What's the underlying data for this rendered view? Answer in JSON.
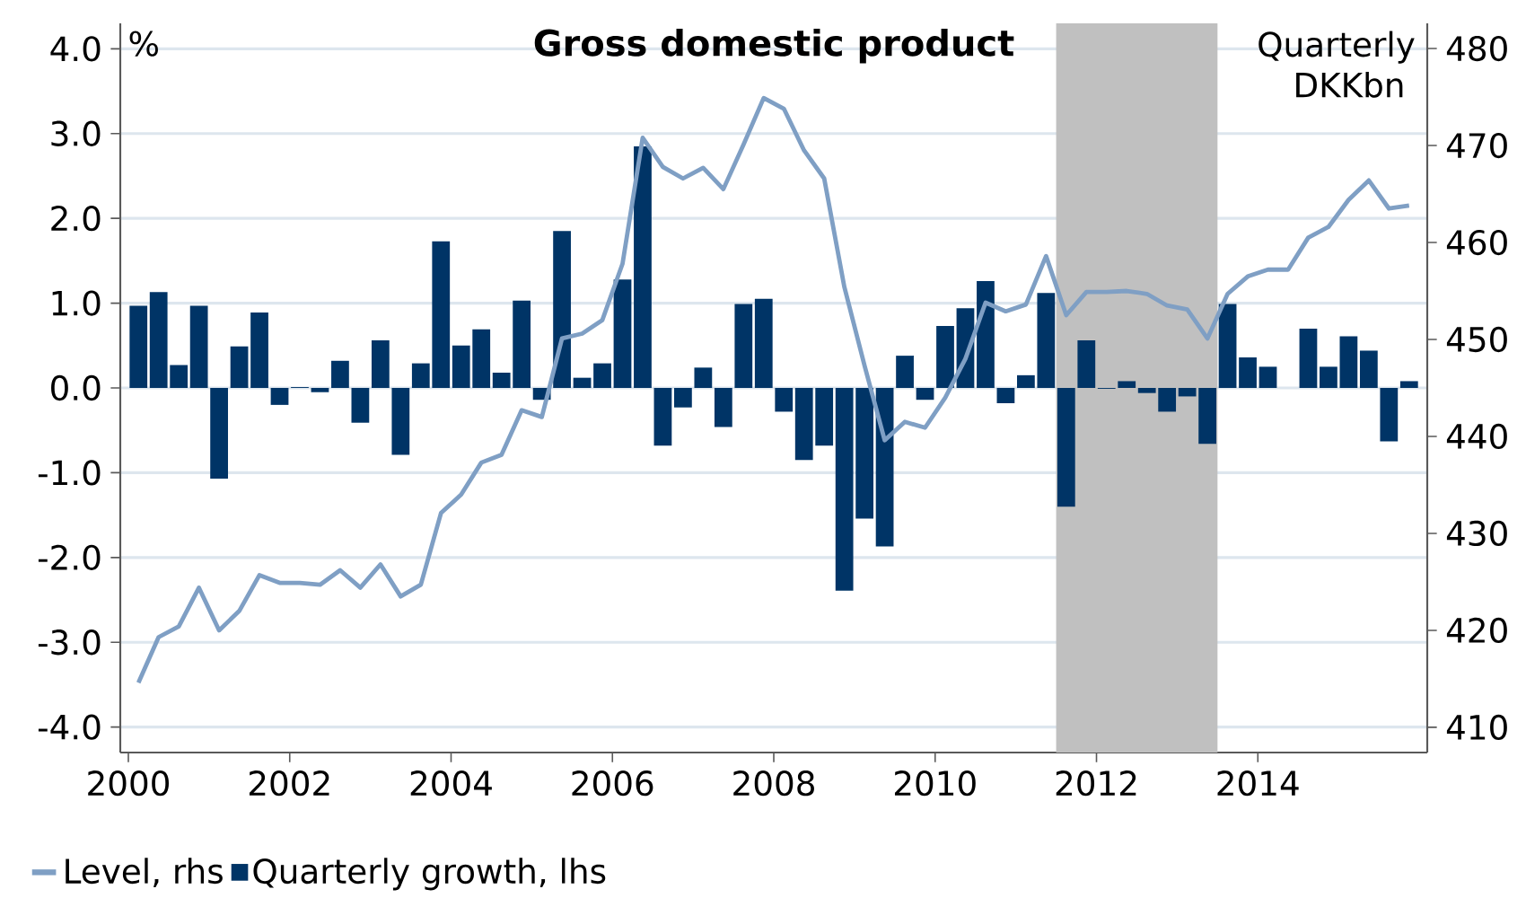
{
  "chart_data": {
    "type": "bar",
    "title": "Gross domestic product",
    "ylabel": "%",
    "y2label": "Quarterly DKKbn",
    "x": [
      2000.125,
      2000.375,
      2000.625,
      2000.875,
      2001.125,
      2001.375,
      2001.625,
      2001.875,
      2002.125,
      2002.375,
      2002.625,
      2002.875,
      2003.125,
      2003.375,
      2003.625,
      2003.875,
      2004.125,
      2004.375,
      2004.625,
      2004.875,
      2005.125,
      2005.375,
      2005.625,
      2005.875,
      2006.125,
      2006.375,
      2006.625,
      2006.875,
      2007.125,
      2007.375,
      2007.625,
      2007.875,
      2008.125,
      2008.375,
      2008.625,
      2008.875,
      2009.125,
      2009.375,
      2009.625,
      2009.875,
      2010.125,
      2010.375,
      2010.625,
      2010.875,
      2011.125,
      2011.375,
      2011.625,
      2011.875,
      2012.125,
      2012.375,
      2012.625,
      2012.875,
      2013.125,
      2013.375,
      2013.625,
      2013.875,
      2014.125,
      2014.375,
      2014.625,
      2014.875,
      2015.125,
      2015.375,
      2015.625,
      2015.875
    ],
    "series": [
      {
        "name": "Level, rhs",
        "type": "line",
        "axis": "y2",
        "color": "#7f9fc4",
        "values": [
          414.6,
          419.3,
          420.4,
          424.4,
          420.0,
          422.0,
          425.7,
          424.9,
          424.9,
          424.7,
          426.2,
          424.4,
          426.8,
          423.5,
          424.7,
          432.1,
          434.0,
          437.3,
          438.1,
          442.7,
          442.0,
          450.1,
          450.6,
          452.0,
          457.8,
          470.8,
          467.8,
          466.6,
          467.7,
          465.5,
          470.1,
          474.9,
          473.8,
          469.5,
          466.6,
          455.4,
          447.3,
          439.6,
          441.5,
          440.9,
          444.0,
          448.0,
          453.8,
          452.9,
          453.6,
          458.6,
          452.5,
          454.9,
          454.9,
          455.0,
          454.7,
          453.5,
          453.1,
          450.1,
          454.7,
          456.5,
          457.2,
          457.2,
          460.5,
          461.6,
          464.4,
          466.4,
          463.5,
          463.8
        ]
      },
      {
        "name": "Quarterly growth, lhs",
        "color": "#003466",
        "values": [
          0.97,
          1.13,
          0.27,
          0.97,
          -1.07,
          0.49,
          0.89,
          -0.2,
          0.01,
          -0.05,
          0.32,
          -0.41,
          0.56,
          -0.79,
          0.29,
          1.73,
          0.5,
          0.69,
          0.18,
          1.03,
          -0.14,
          1.85,
          0.12,
          0.29,
          1.28,
          2.85,
          -0.68,
          -0.23,
          0.24,
          -0.46,
          0.99,
          1.05,
          -0.28,
          -0.85,
          -0.68,
          -2.39,
          -1.54,
          -1.87,
          0.38,
          -0.14,
          0.73,
          0.94,
          1.26,
          -0.18,
          0.15,
          1.12,
          -1.4,
          0.56,
          -0.01,
          0.08,
          -0.06,
          -0.28,
          -0.1,
          -0.66,
          0.99,
          0.36,
          0.25,
          0.0,
          0.7,
          0.25,
          0.61,
          0.44,
          -0.63,
          0.08
        ]
      }
    ],
    "xlim": [
      1999.9,
      2016.1
    ],
    "xticks": [
      2000,
      2002,
      2004,
      2006,
      2008,
      2010,
      2012,
      2014
    ],
    "ylim": [
      -4.3,
      4.3
    ],
    "yticks": [
      {
        "value": -4,
        "label": "-4.0"
      },
      {
        "value": -3,
        "label": "-3.0"
      },
      {
        "value": -2,
        "label": "-2.0"
      },
      {
        "value": -1,
        "label": "-1.0"
      },
      {
        "value": 0,
        "label": "0.0"
      },
      {
        "value": 1,
        "label": "1.0"
      },
      {
        "value": 2,
        "label": "2.0"
      },
      {
        "value": 3,
        "label": "3.0"
      },
      {
        "value": 4,
        "label": "4.0"
      }
    ],
    "y2lim": [
      407.4,
      482.6
    ],
    "y2ticks": [
      410,
      420,
      430,
      440,
      450,
      460,
      470,
      480
    ],
    "bands": [
      {
        "axis": "x",
        "from": 2011.5,
        "to": 2013.5,
        "color": "#c0c0c0"
      }
    ],
    "grid": "y",
    "legend": "bottom",
    "marker": "none",
    "line_style": "solid"
  }
}
